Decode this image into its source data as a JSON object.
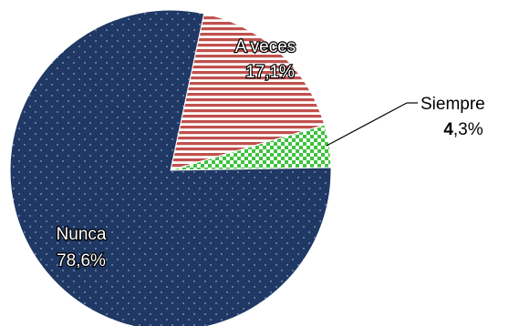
{
  "chart_data": {
    "type": "pie",
    "categories": [
      "A veces",
      "Siempre",
      "Nunca"
    ],
    "values": [
      17.1,
      4.3,
      78.6
    ],
    "value_labels": [
      "17,1%",
      "4,3%",
      "78,6%"
    ],
    "siempre_label": {
      "bold_part": "4",
      "rest": ",3%"
    },
    "colors": [
      "#c0504d",
      "#3cc33c",
      "#1f3864"
    ],
    "patterns": [
      "horizontal-stripes",
      "checkerboard",
      "dots"
    ],
    "start_angle_deg": 78,
    "direction": "clockwise",
    "legend": "none"
  }
}
